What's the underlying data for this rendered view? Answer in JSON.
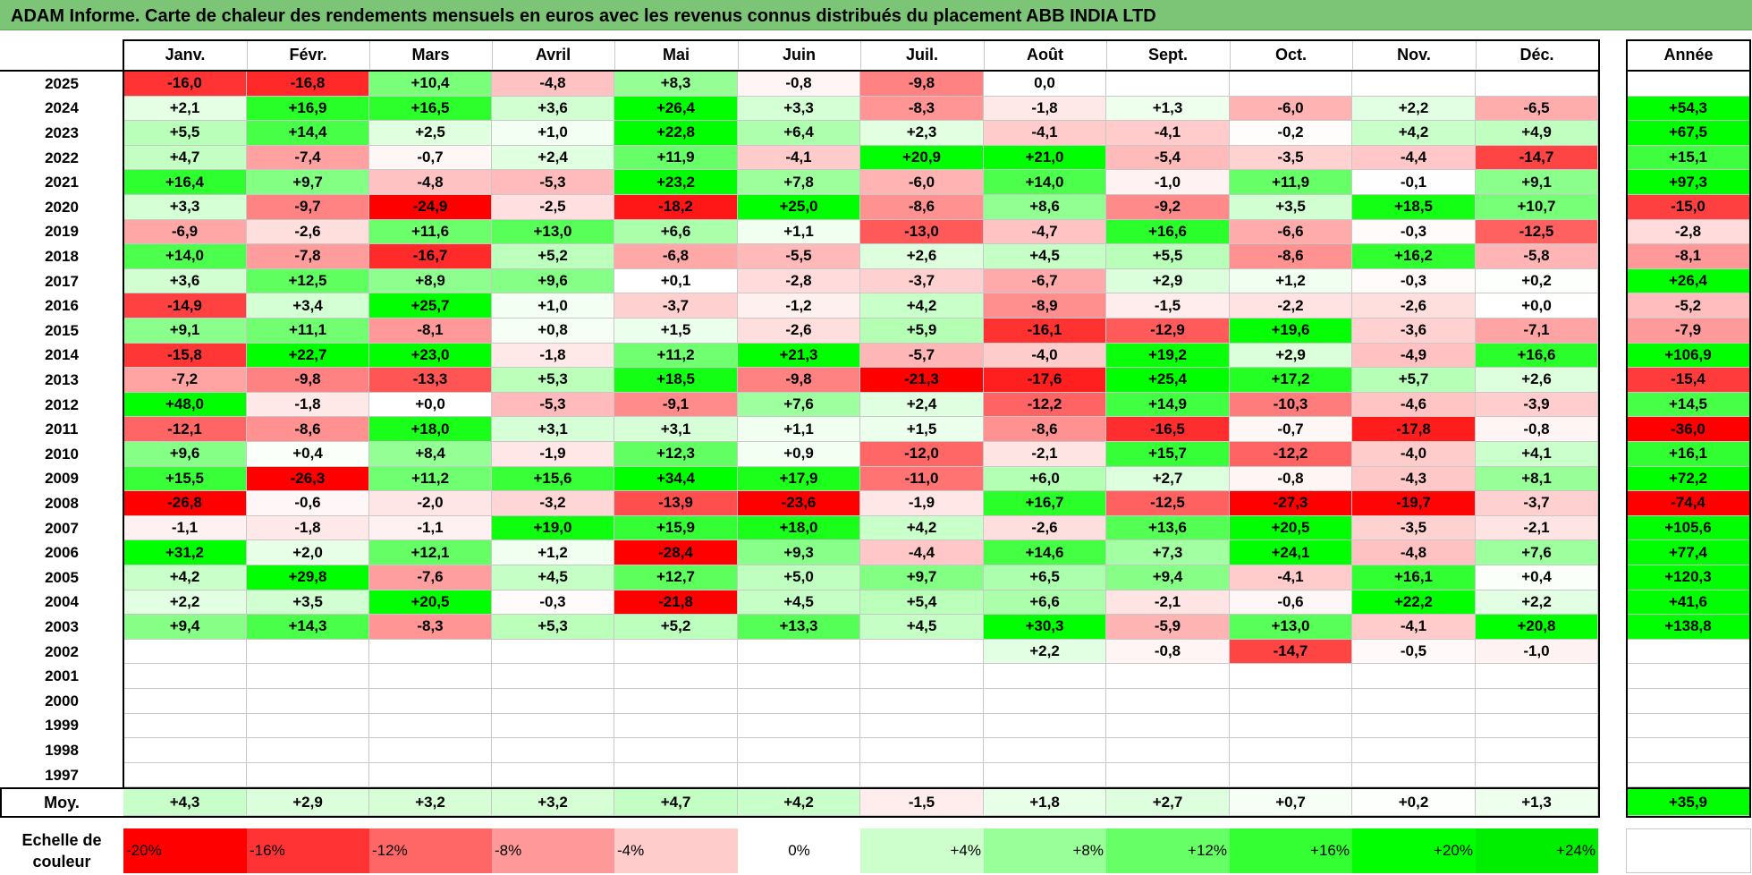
{
  "title": "ADAM Informe. Carte de chaleur des rendements mensuels en euros avec les revenus connus distribués du placement ABB INDIA LTD",
  "chart_data": {
    "type": "heatmap",
    "months": [
      "Janv.",
      "Févr.",
      "Mars",
      "Avril",
      "Mai",
      "Juin",
      "Juil.",
      "Août",
      "Sept.",
      "Oct.",
      "Nov.",
      "Déc."
    ],
    "year_header": "Année",
    "rows": [
      {
        "year": "2025",
        "values": [
          "-16,0",
          "-16,8",
          "+10,4",
          "-4,8",
          "+8,3",
          "-0,8",
          "-9,8",
          "0,0",
          "",
          "",
          "",
          ""
        ],
        "annual": ""
      },
      {
        "year": "2024",
        "values": [
          "+2,1",
          "+16,9",
          "+16,5",
          "+3,6",
          "+26,4",
          "+3,3",
          "-8,3",
          "-1,8",
          "+1,3",
          "-6,0",
          "+2,2",
          "-6,5"
        ],
        "annual": "+54,3"
      },
      {
        "year": "2023",
        "values": [
          "+5,5",
          "+14,4",
          "+2,5",
          "+1,0",
          "+22,8",
          "+6,4",
          "+2,3",
          "-4,1",
          "-4,1",
          "-0,2",
          "+4,2",
          "+4,9"
        ],
        "annual": "+67,5"
      },
      {
        "year": "2022",
        "values": [
          "+4,7",
          "-7,4",
          "-0,7",
          "+2,4",
          "+11,9",
          "-4,1",
          "+20,9",
          "+21,0",
          "-5,4",
          "-3,5",
          "-4,4",
          "-14,7"
        ],
        "annual": "+15,1"
      },
      {
        "year": "2021",
        "values": [
          "+16,4",
          "+9,7",
          "-4,8",
          "-5,3",
          "+23,2",
          "+7,8",
          "-6,0",
          "+14,0",
          "-1,0",
          "+11,9",
          "-0,1",
          "+9,1"
        ],
        "annual": "+97,3"
      },
      {
        "year": "2020",
        "values": [
          "+3,3",
          "-9,7",
          "-24,9",
          "-2,5",
          "-18,2",
          "+25,0",
          "-8,6",
          "+8,6",
          "-9,2",
          "+3,5",
          "+18,5",
          "+10,7"
        ],
        "annual": "-15,0"
      },
      {
        "year": "2019",
        "values": [
          "-6,9",
          "-2,6",
          "+11,6",
          "+13,0",
          "+6,6",
          "+1,1",
          "-13,0",
          "-4,7",
          "+16,6",
          "-6,6",
          "-0,3",
          "-12,5"
        ],
        "annual": "-2,8"
      },
      {
        "year": "2018",
        "values": [
          "+14,0",
          "-7,8",
          "-16,7",
          "+5,2",
          "-6,8",
          "-5,5",
          "+2,6",
          "+4,5",
          "+5,5",
          "-8,6",
          "+16,2",
          "-5,8"
        ],
        "annual": "-8,1"
      },
      {
        "year": "2017",
        "values": [
          "+3,6",
          "+12,5",
          "+8,9",
          "+9,6",
          "+0,1",
          "-2,8",
          "-3,7",
          "-6,7",
          "+2,9",
          "+1,2",
          "-0,3",
          "+0,2"
        ],
        "annual": "+26,4"
      },
      {
        "year": "2016",
        "values": [
          "-14,9",
          "+3,4",
          "+25,7",
          "+1,0",
          "-3,7",
          "-1,2",
          "+4,2",
          "-8,9",
          "-1,5",
          "-2,2",
          "-2,6",
          "+0,0"
        ],
        "annual": "-5,2"
      },
      {
        "year": "2015",
        "values": [
          "+9,1",
          "+11,1",
          "-8,1",
          "+0,8",
          "+1,5",
          "-2,6",
          "+5,9",
          "-16,1",
          "-12,9",
          "+19,6",
          "-3,6",
          "-7,1"
        ],
        "annual": "-7,9"
      },
      {
        "year": "2014",
        "values": [
          "-15,8",
          "+22,7",
          "+23,0",
          "-1,8",
          "+11,2",
          "+21,3",
          "-5,7",
          "-4,0",
          "+19,2",
          "+2,9",
          "-4,9",
          "+16,6"
        ],
        "annual": "+106,9"
      },
      {
        "year": "2013",
        "values": [
          "-7,2",
          "-9,8",
          "-13,3",
          "+5,3",
          "+18,5",
          "-9,8",
          "-21,3",
          "-17,6",
          "+25,4",
          "+17,2",
          "+5,7",
          "+2,6"
        ],
        "annual": "-15,4"
      },
      {
        "year": "2012",
        "values": [
          "+48,0",
          "-1,8",
          "+0,0",
          "-5,3",
          "-9,1",
          "+7,6",
          "+2,4",
          "-12,2",
          "+14,9",
          "-10,3",
          "-4,6",
          "-3,9"
        ],
        "annual": "+14,5"
      },
      {
        "year": "2011",
        "values": [
          "-12,1",
          "-8,6",
          "+18,0",
          "+3,1",
          "+3,1",
          "+1,1",
          "+1,5",
          "-8,6",
          "-16,5",
          "-0,7",
          "-17,8",
          "-0,8"
        ],
        "annual": "-36,0"
      },
      {
        "year": "2010",
        "values": [
          "+9,6",
          "+0,4",
          "+8,4",
          "-1,9",
          "+12,3",
          "+0,9",
          "-12,0",
          "-2,1",
          "+15,7",
          "-12,2",
          "-4,0",
          "+4,1"
        ],
        "annual": "+16,1"
      },
      {
        "year": "2009",
        "values": [
          "+15,5",
          "-26,3",
          "+11,2",
          "+15,6",
          "+34,4",
          "+17,9",
          "-11,0",
          "+6,0",
          "+2,7",
          "-0,8",
          "-4,3",
          "+8,1"
        ],
        "annual": "+72,2"
      },
      {
        "year": "2008",
        "values": [
          "-26,8",
          "-0,6",
          "-2,0",
          "-3,2",
          "-13,9",
          "-23,6",
          "-1,9",
          "+16,7",
          "-12,5",
          "-27,3",
          "-19,7",
          "-3,7"
        ],
        "annual": "-74,4"
      },
      {
        "year": "2007",
        "values": [
          "-1,1",
          "-1,8",
          "-1,1",
          "+19,0",
          "+15,9",
          "+18,0",
          "+4,2",
          "-2,6",
          "+13,6",
          "+20,5",
          "-3,5",
          "-2,1"
        ],
        "annual": "+105,6"
      },
      {
        "year": "2006",
        "values": [
          "+31,2",
          "+2,0",
          "+12,1",
          "+1,2",
          "-28,4",
          "+9,3",
          "-4,4",
          "+14,6",
          "+7,3",
          "+24,1",
          "-4,8",
          "+7,6"
        ],
        "annual": "+77,4"
      },
      {
        "year": "2005",
        "values": [
          "+4,2",
          "+29,8",
          "-7,6",
          "+4,5",
          "+12,7",
          "+5,0",
          "+9,7",
          "+6,5",
          "+9,4",
          "-4,1",
          "+16,1",
          "+0,4"
        ],
        "annual": "+120,3"
      },
      {
        "year": "2004",
        "values": [
          "+2,2",
          "+3,5",
          "+20,5",
          "-0,3",
          "-21,8",
          "+4,5",
          "+5,4",
          "+6,6",
          "-2,1",
          "-0,6",
          "+22,2",
          "+2,2"
        ],
        "annual": "+41,6"
      },
      {
        "year": "2003",
        "values": [
          "+9,4",
          "+14,3",
          "-8,3",
          "+5,3",
          "+5,2",
          "+13,3",
          "+4,5",
          "+30,3",
          "-5,9",
          "+13,0",
          "-4,1",
          "+20,8"
        ],
        "annual": "+138,8"
      },
      {
        "year": "2002",
        "values": [
          "",
          "",
          "",
          "",
          "",
          "",
          "",
          "+2,2",
          "-0,8",
          "-14,7",
          "-0,5",
          "-1,0"
        ],
        "annual": ""
      },
      {
        "year": "2001",
        "values": [
          "",
          "",
          "",
          "",
          "",
          "",
          "",
          "",
          "",
          "",
          "",
          ""
        ],
        "annual": ""
      },
      {
        "year": "2000",
        "values": [
          "",
          "",
          "",
          "",
          "",
          "",
          "",
          "",
          "",
          "",
          "",
          ""
        ],
        "annual": ""
      },
      {
        "year": "1999",
        "values": [
          "",
          "",
          "",
          "",
          "",
          "",
          "",
          "",
          "",
          "",
          "",
          ""
        ],
        "annual": ""
      },
      {
        "year": "1998",
        "values": [
          "",
          "",
          "",
          "",
          "",
          "",
          "",
          "",
          "",
          "",
          "",
          ""
        ],
        "annual": ""
      },
      {
        "year": "1997",
        "values": [
          "",
          "",
          "",
          "",
          "",
          "",
          "",
          "",
          "",
          "",
          "",
          ""
        ],
        "annual": ""
      }
    ],
    "average": {
      "label": "Moy.",
      "values": [
        "+4,3",
        "+2,9",
        "+3,2",
        "+3,2",
        "+4,7",
        "+4,2",
        "-1,5",
        "+1,8",
        "+2,7",
        "+0,7",
        "+0,2",
        "+1,3"
      ],
      "annual": "+35,9"
    },
    "color_scale": {
      "label": "Echelle de couleur",
      "stops": [
        {
          "label": "-20%",
          "value": -20,
          "color": "#ff0000"
        },
        {
          "label": "-16%",
          "value": -16,
          "color": "#ff3333"
        },
        {
          "label": "-12%",
          "value": -12,
          "color": "#ff6666"
        },
        {
          "label": "-8%",
          "value": -8,
          "color": "#ff9999"
        },
        {
          "label": "-4%",
          "value": -4,
          "color": "#ffcccc"
        },
        {
          "label": "0%",
          "value": 0,
          "color": "#ffffff"
        },
        {
          "label": "+4%",
          "value": 4,
          "color": "#ccffcc"
        },
        {
          "label": "+8%",
          "value": 8,
          "color": "#99ff99"
        },
        {
          "label": "+12%",
          "value": 12,
          "color": "#66ff66"
        },
        {
          "label": "+16%",
          "value": 16,
          "color": "#33ff33"
        },
        {
          "label": "+20%",
          "value": 20,
          "color": "#00ff00"
        },
        {
          "label": "+24%",
          "value": 24,
          "color": "#00ee00"
        }
      ]
    }
  }
}
